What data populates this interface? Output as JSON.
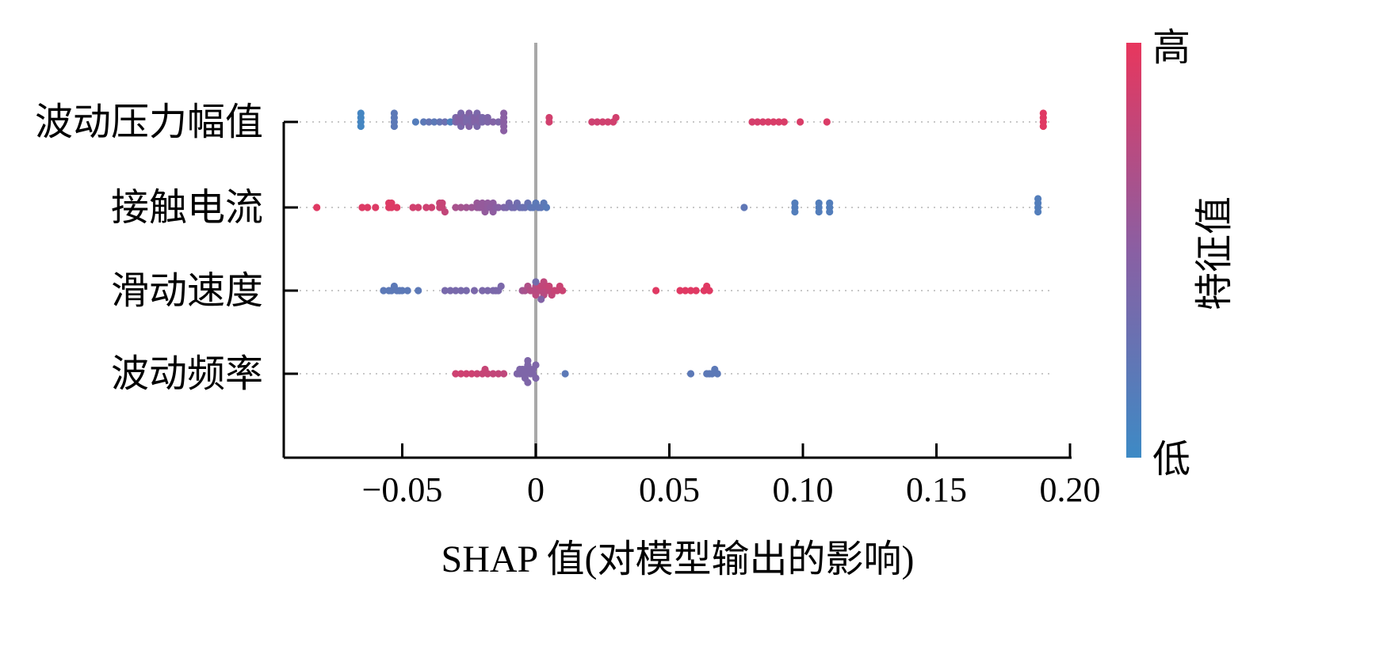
{
  "chart_data": {
    "type": "scatter",
    "subtype": "shap-beeswarm",
    "xlabel": "SHAP 值(对模型输出的影响)",
    "xlim": [
      -0.095,
      0.2
    ],
    "x_ticks": [
      -0.05,
      0,
      0.05,
      0.1,
      0.15,
      0.2
    ],
    "x_tick_labels": [
      "−0.05",
      "0",
      "0.05",
      "0.10",
      "0.15",
      "0.20"
    ],
    "zero_line": true,
    "grid": "dotted horizontal guides per feature",
    "colorbar": {
      "label": "特征值",
      "high_label": "高",
      "low_label": "低",
      "high_color": "#e8365d",
      "low_color": "#3d8ac5",
      "position": "right"
    },
    "colors": {
      "high": "#e8365d",
      "mid": "#8a5fa3",
      "low": "#3d8ac5",
      "zero_line": "#a0a0a0",
      "grid": "#c8c8c8"
    },
    "features": [
      {
        "name": "波动压力幅值",
        "points": [
          [
            -0.0655,
            0.05
          ],
          [
            -0.0655,
            0.05
          ],
          [
            -0.0655,
            0.05
          ],
          [
            -0.0655,
            0.05
          ],
          [
            -0.053,
            0.2
          ],
          [
            -0.053,
            0.2
          ],
          [
            -0.053,
            0.2
          ],
          [
            -0.053,
            0.2
          ],
          [
            -0.045,
            0.15
          ],
          [
            -0.042,
            0.2
          ],
          [
            -0.04,
            0.25
          ],
          [
            -0.038,
            0.2
          ],
          [
            -0.036,
            0.25
          ],
          [
            -0.034,
            0.3
          ],
          [
            -0.032,
            0.1
          ],
          [
            -0.03,
            0.4
          ],
          [
            -0.03,
            0.4
          ],
          [
            -0.029,
            0.45
          ],
          [
            -0.029,
            0.45
          ],
          [
            -0.028,
            0.4
          ],
          [
            -0.028,
            0.4
          ],
          [
            -0.027,
            0.45
          ],
          [
            -0.027,
            0.45
          ],
          [
            -0.026,
            0.4
          ],
          [
            -0.026,
            0.4
          ],
          [
            -0.025,
            0.45
          ],
          [
            -0.025,
            0.45
          ],
          [
            -0.024,
            0.4
          ],
          [
            -0.024,
            0.4
          ],
          [
            -0.023,
            0.45
          ],
          [
            -0.023,
            0.45
          ],
          [
            -0.022,
            0.4
          ],
          [
            -0.022,
            0.4
          ],
          [
            -0.021,
            0.45
          ],
          [
            -0.021,
            0.45
          ],
          [
            -0.02,
            0.4
          ],
          [
            -0.02,
            0.4
          ],
          [
            -0.018,
            0.42
          ],
          [
            -0.018,
            0.42
          ],
          [
            -0.016,
            0.45
          ],
          [
            -0.014,
            0.42
          ],
          [
            -0.012,
            0.5
          ],
          [
            -0.012,
            0.5
          ],
          [
            -0.012,
            0.5
          ],
          [
            -0.012,
            0.5
          ],
          [
            -0.012,
            0.5
          ],
          [
            0.005,
            0.88
          ],
          [
            0.005,
            0.88
          ],
          [
            0.021,
            0.86
          ],
          [
            0.023,
            0.86
          ],
          [
            0.025,
            0.87
          ],
          [
            0.027,
            0.87
          ],
          [
            0.029,
            0.88
          ],
          [
            0.03,
            0.88
          ],
          [
            0.081,
            0.9
          ],
          [
            0.083,
            0.9
          ],
          [
            0.085,
            0.91
          ],
          [
            0.087,
            0.92
          ],
          [
            0.089,
            0.92
          ],
          [
            0.091,
            0.92
          ],
          [
            0.093,
            0.92
          ],
          [
            0.099,
            0.92
          ],
          [
            0.109,
            0.93
          ],
          [
            0.19,
            0.96
          ],
          [
            0.19,
            0.96
          ],
          [
            0.19,
            0.96
          ],
          [
            0.19,
            0.96
          ]
        ]
      },
      {
        "name": "接触电流",
        "points": [
          [
            -0.082,
            0.96
          ],
          [
            -0.065,
            0.94
          ],
          [
            -0.063,
            0.94
          ],
          [
            -0.06,
            0.94
          ],
          [
            -0.055,
            0.94
          ],
          [
            -0.055,
            0.94
          ],
          [
            -0.054,
            0.94
          ],
          [
            -0.054,
            0.94
          ],
          [
            -0.052,
            0.94
          ],
          [
            -0.046,
            0.88
          ],
          [
            -0.044,
            0.88
          ],
          [
            -0.041,
            0.86
          ],
          [
            -0.039,
            0.86
          ],
          [
            -0.036,
            0.82
          ],
          [
            -0.036,
            0.82
          ],
          [
            -0.035,
            0.82
          ],
          [
            -0.035,
            0.82
          ],
          [
            -0.034,
            0.8
          ],
          [
            -0.03,
            0.66
          ],
          [
            -0.028,
            0.64
          ],
          [
            -0.026,
            0.62
          ],
          [
            -0.024,
            0.6
          ],
          [
            -0.022,
            0.58
          ],
          [
            -0.022,
            0.58
          ],
          [
            -0.021,
            0.56
          ],
          [
            -0.02,
            0.56
          ],
          [
            -0.02,
            0.56
          ],
          [
            -0.019,
            0.55
          ],
          [
            -0.018,
            0.54
          ],
          [
            -0.018,
            0.54
          ],
          [
            -0.017,
            0.52
          ],
          [
            -0.016,
            0.52
          ],
          [
            -0.016,
            0.52
          ],
          [
            -0.015,
            0.5
          ],
          [
            -0.014,
            0.48
          ],
          [
            -0.012,
            0.42
          ],
          [
            -0.011,
            0.4
          ],
          [
            -0.01,
            0.38
          ],
          [
            -0.009,
            0.36
          ],
          [
            -0.008,
            0.36
          ],
          [
            -0.007,
            0.34
          ],
          [
            -0.006,
            0.32
          ],
          [
            -0.005,
            0.3
          ],
          [
            -0.004,
            0.3
          ],
          [
            -0.003,
            0.28
          ],
          [
            -0.002,
            0.24
          ],
          [
            -0.001,
            0.22
          ],
          [
            0.0,
            0.2
          ],
          [
            0.001,
            0.22
          ],
          [
            0.002,
            0.22
          ],
          [
            0.003,
            0.2
          ],
          [
            0.004,
            0.18
          ],
          [
            0.078,
            0.22
          ],
          [
            0.097,
            0.14
          ],
          [
            0.097,
            0.14
          ],
          [
            0.097,
            0.14
          ],
          [
            0.106,
            0.14
          ],
          [
            0.106,
            0.14
          ],
          [
            0.106,
            0.14
          ],
          [
            0.11,
            0.14
          ],
          [
            0.11,
            0.14
          ],
          [
            0.11,
            0.14
          ],
          [
            0.188,
            0.14
          ],
          [
            0.188,
            0.14
          ],
          [
            0.188,
            0.14
          ],
          [
            0.188,
            0.14
          ]
        ]
      },
      {
        "name": "滑动速度",
        "points": [
          [
            -0.057,
            0.2
          ],
          [
            -0.055,
            0.2
          ],
          [
            -0.054,
            0.2
          ],
          [
            -0.053,
            0.2
          ],
          [
            -0.052,
            0.2
          ],
          [
            -0.051,
            0.2
          ],
          [
            -0.05,
            0.2
          ],
          [
            -0.048,
            0.2
          ],
          [
            -0.044,
            0.2
          ],
          [
            -0.034,
            0.38
          ],
          [
            -0.032,
            0.38
          ],
          [
            -0.03,
            0.38
          ],
          [
            -0.028,
            0.38
          ],
          [
            -0.026,
            0.38
          ],
          [
            -0.023,
            0.4
          ],
          [
            -0.02,
            0.4
          ],
          [
            -0.018,
            0.4
          ],
          [
            -0.016,
            0.4
          ],
          [
            -0.015,
            0.4
          ],
          [
            -0.014,
            0.4
          ],
          [
            -0.013,
            0.4
          ],
          [
            -0.005,
            0.62
          ],
          [
            -0.004,
            0.66
          ],
          [
            -0.003,
            0.7
          ],
          [
            -0.002,
            0.72
          ],
          [
            -0.001,
            0.74
          ],
          [
            0.0,
            0.72
          ],
          [
            0.0,
            0.76
          ],
          [
            0.001,
            0.74
          ],
          [
            0.001,
            0.78
          ],
          [
            0.002,
            0.76
          ],
          [
            0.002,
            0.8
          ],
          [
            0.003,
            0.74
          ],
          [
            0.003,
            0.78
          ],
          [
            0.004,
            0.76
          ],
          [
            0.004,
            0.8
          ],
          [
            0.005,
            0.78
          ],
          [
            0.005,
            0.82
          ],
          [
            0.006,
            0.8
          ],
          [
            0.007,
            0.82
          ],
          [
            0.008,
            0.82
          ],
          [
            0.009,
            0.84
          ],
          [
            0.01,
            0.84
          ],
          [
            0.0,
            0.35
          ],
          [
            0.002,
            0.45
          ],
          [
            0.045,
            0.96
          ],
          [
            0.054,
            0.96
          ],
          [
            0.056,
            0.96
          ],
          [
            0.058,
            0.96
          ],
          [
            0.06,
            0.96
          ],
          [
            0.063,
            0.96
          ],
          [
            0.064,
            0.96
          ],
          [
            0.065,
            0.96
          ]
        ]
      },
      {
        "name": "波动频率",
        "points": [
          [
            -0.03,
            0.86
          ],
          [
            -0.028,
            0.86
          ],
          [
            -0.026,
            0.86
          ],
          [
            -0.024,
            0.86
          ],
          [
            -0.022,
            0.84
          ],
          [
            -0.02,
            0.82
          ],
          [
            -0.019,
            0.82
          ],
          [
            -0.018,
            0.82
          ],
          [
            -0.016,
            0.8
          ],
          [
            -0.014,
            0.8
          ],
          [
            -0.012,
            0.78
          ],
          [
            -0.007,
            0.42
          ],
          [
            -0.006,
            0.42
          ],
          [
            -0.006,
            0.42
          ],
          [
            -0.005,
            0.42
          ],
          [
            -0.005,
            0.42
          ],
          [
            -0.004,
            0.42
          ],
          [
            -0.004,
            0.42
          ],
          [
            -0.004,
            0.42
          ],
          [
            -0.003,
            0.42
          ],
          [
            -0.003,
            0.42
          ],
          [
            -0.003,
            0.42
          ],
          [
            -0.002,
            0.42
          ],
          [
            -0.002,
            0.42
          ],
          [
            -0.001,
            0.42
          ],
          [
            -0.001,
            0.42
          ],
          [
            0.0,
            0.42
          ],
          [
            0.0,
            0.42
          ],
          [
            0.011,
            0.2
          ],
          [
            0.058,
            0.2
          ],
          [
            0.064,
            0.2
          ],
          [
            0.065,
            0.2
          ],
          [
            0.066,
            0.2
          ],
          [
            0.067,
            0.2
          ],
          [
            0.068,
            0.2
          ]
        ]
      }
    ]
  }
}
